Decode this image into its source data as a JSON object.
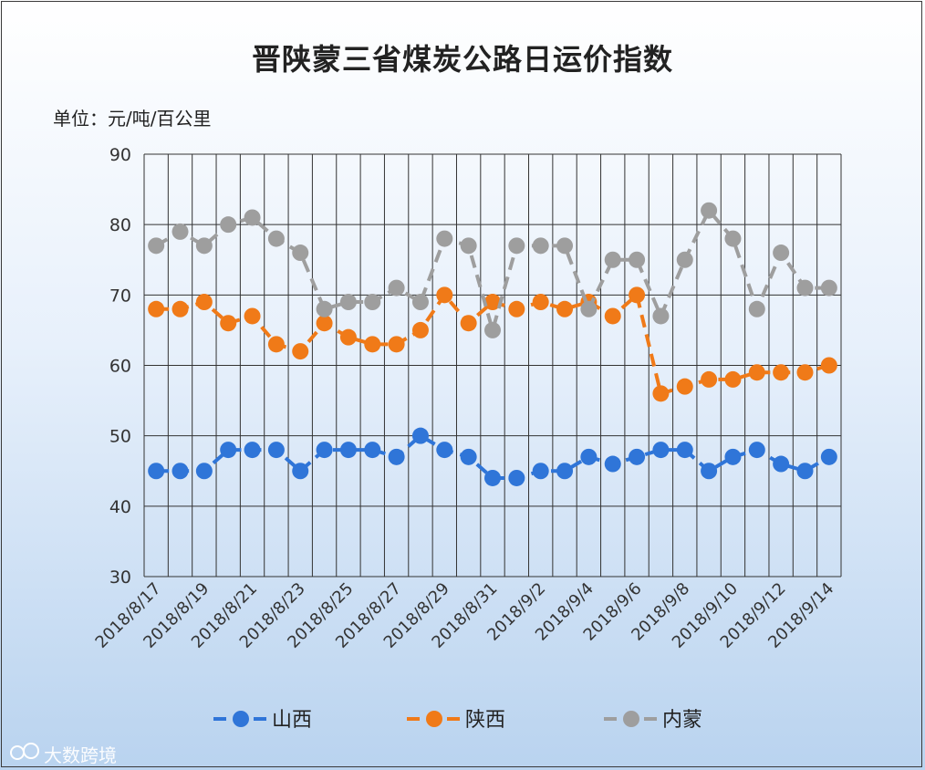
{
  "chart_data": {
    "type": "line",
    "title": "晋陕蒙三省煤炭公路日运价指数",
    "unit_label": "单位：元/吨/百公里",
    "ylim": [
      30,
      90
    ],
    "yticks": [
      30,
      40,
      50,
      60,
      70,
      80,
      90
    ],
    "categories": [
      "2018/8/17",
      "2018/8/18",
      "2018/8/19",
      "2018/8/20",
      "2018/8/21",
      "2018/8/22",
      "2018/8/23",
      "2018/8/24",
      "2018/8/25",
      "2018/8/26",
      "2018/8/27",
      "2018/8/28",
      "2018/8/29",
      "2018/8/30",
      "2018/8/31",
      "2018/9/1",
      "2018/9/2",
      "2018/9/3",
      "2018/9/4",
      "2018/9/5",
      "2018/9/6",
      "2018/9/7",
      "2018/9/8",
      "2018/9/9",
      "2018/9/10",
      "2018/9/11",
      "2018/9/12",
      "2018/9/13",
      "2018/9/14"
    ],
    "tick_labels": [
      "2018/8/17",
      "2018/8/19",
      "2018/8/21",
      "2018/8/23",
      "2018/8/25",
      "2018/8/27",
      "2018/8/29",
      "2018/8/31",
      "2018/9/2",
      "2018/9/4",
      "2018/9/6",
      "2018/9/8",
      "2018/9/10",
      "2018/9/12",
      "2018/9/14"
    ],
    "series": [
      {
        "name": "山西",
        "color": "#2f75d8",
        "values": [
          45,
          45,
          45,
          48,
          48,
          48,
          45,
          48,
          48,
          48,
          47,
          50,
          48,
          47,
          44,
          44,
          45,
          45,
          47,
          46,
          47,
          48,
          48,
          45,
          47,
          48,
          46,
          45,
          47
        ]
      },
      {
        "name": "陕西",
        "color": "#f07a18",
        "values": [
          68,
          68,
          69,
          66,
          67,
          63,
          62,
          66,
          64,
          63,
          63,
          65,
          70,
          66,
          69,
          68,
          69,
          68,
          69,
          67,
          70,
          56,
          57,
          58,
          58,
          59,
          59,
          59,
          60
        ]
      },
      {
        "name": "内蒙",
        "color": "#9e9e9e",
        "values": [
          77,
          79,
          77,
          80,
          81,
          78,
          76,
          68,
          69,
          69,
          71,
          69,
          78,
          77,
          65,
          77,
          77,
          77,
          68,
          75,
          75,
          67,
          75,
          82,
          78,
          68,
          76,
          71,
          71
        ]
      }
    ]
  },
  "watermark": "大数跨境",
  "colors": {
    "grid": "#333333",
    "axis_text": "#333333"
  }
}
